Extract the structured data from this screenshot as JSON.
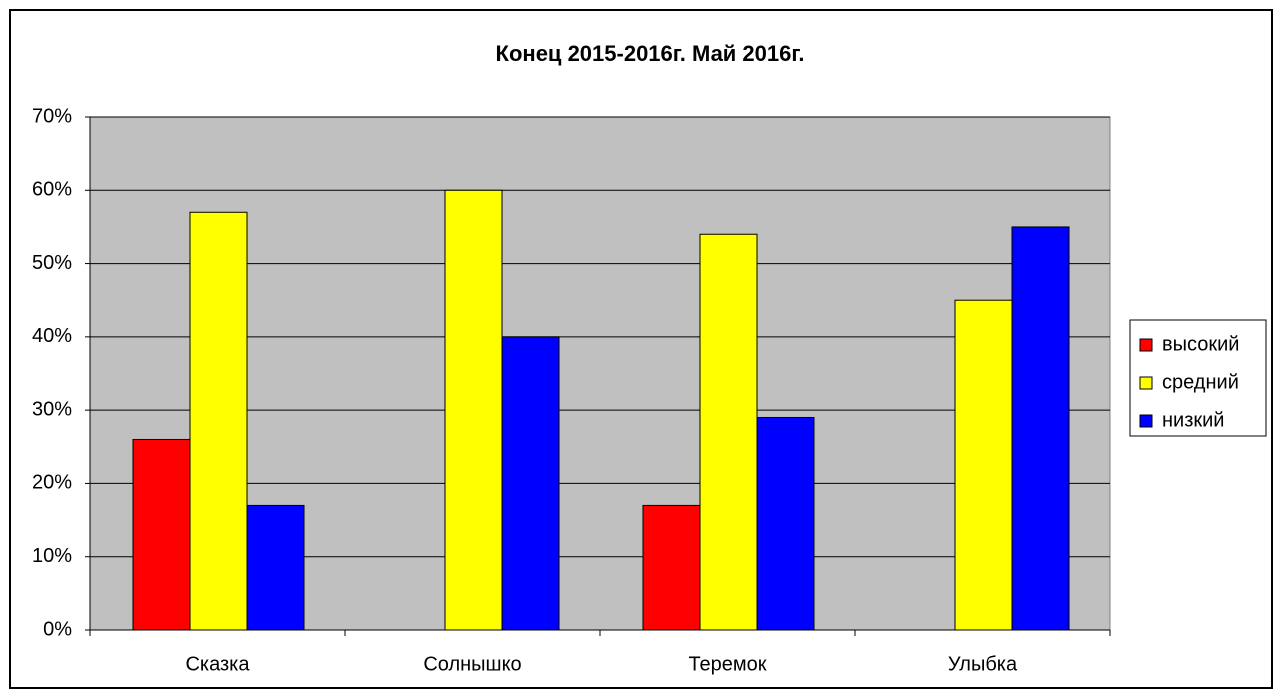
{
  "chart_data": {
    "type": "bar",
    "title": "Конец 2015-2016г. Май 2016г.",
    "categories": [
      "Сказка",
      "Солнышко",
      "Теремок",
      "Улыбка"
    ],
    "series": [
      {
        "name": "высокий",
        "color": "#ff0000",
        "values": [
          26,
          0,
          17,
          0
        ]
      },
      {
        "name": "средний",
        "color": "#ffff00",
        "values": [
          57,
          60,
          54,
          45
        ]
      },
      {
        "name": "низкий",
        "color": "#0000ff",
        "values": [
          17,
          40,
          29,
          55
        ]
      }
    ],
    "ylim": [
      0,
      70
    ],
    "yticks": [
      {
        "value": 0,
        "label": "0%"
      },
      {
        "value": 10,
        "label": "10%"
      },
      {
        "value": 20,
        "label": "20%"
      },
      {
        "value": 30,
        "label": "30%"
      },
      {
        "value": 40,
        "label": "40%"
      },
      {
        "value": 50,
        "label": "50%"
      },
      {
        "value": 60,
        "label": "60%"
      },
      {
        "value": 70,
        "label": "70%"
      }
    ],
    "grid": true,
    "legend": "right",
    "plot_background": "#c0c0c0"
  }
}
